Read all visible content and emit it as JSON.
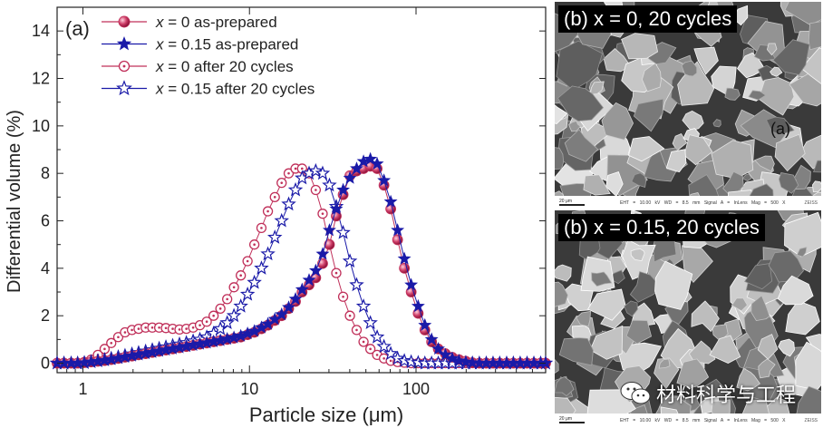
{
  "chart_data": {
    "type": "scatter",
    "panel_label": "(a)",
    "xlabel": "Particle size (μm)",
    "ylabel": "Differential volume (%)",
    "xscale": "log",
    "xlim": [
      0.7,
      600
    ],
    "ylim": [
      -0.4,
      15
    ],
    "xticks": [
      {
        "value": 1,
        "label": "1"
      },
      {
        "value": 10,
        "label": "10"
      },
      {
        "value": 100,
        "label": "100"
      }
    ],
    "yticks": [
      0,
      2,
      4,
      6,
      8,
      10,
      12,
      14
    ],
    "grid": false,
    "legend_position": "top-left",
    "series": [
      {
        "name": "x = 0 as-prepared",
        "name_var": "x",
        "name_rest": " = 0 as-prepared",
        "color": "#c0305a",
        "marker": "half-filled-circle",
        "x": [
          0.7,
          0.77,
          0.85,
          0.93,
          1.02,
          1.12,
          1.23,
          1.35,
          1.48,
          1.63,
          1.79,
          1.97,
          2.16,
          2.38,
          2.61,
          2.87,
          3.15,
          3.46,
          3.8,
          4.18,
          4.59,
          5.04,
          5.54,
          6.09,
          6.69,
          7.35,
          8.07,
          8.87,
          9.74,
          10.7,
          11.8,
          12.9,
          14.2,
          15.6,
          17.2,
          18.9,
          20.7,
          22.8,
          25.0,
          27.5,
          30.2,
          33.2,
          36.5,
          40.1,
          44.0,
          48.4,
          53.2,
          58.4,
          64.2,
          70.5,
          77.5,
          85.1,
          93.5,
          103,
          113,
          124,
          136,
          150,
          165,
          181,
          199,
          218,
          240,
          264,
          290,
          318,
          350,
          384,
          422,
          464,
          510,
          560,
          600
        ],
        "y": [
          0,
          0,
          0,
          0,
          0.02,
          0.05,
          0.08,
          0.11,
          0.15,
          0.2,
          0.25,
          0.3,
          0.35,
          0.4,
          0.45,
          0.5,
          0.55,
          0.6,
          0.65,
          0.7,
          0.75,
          0.8,
          0.85,
          0.9,
          0.95,
          1.0,
          1.05,
          1.1,
          1.2,
          1.3,
          1.45,
          1.6,
          1.8,
          2.0,
          2.3,
          2.6,
          3.0,
          3.3,
          3.6,
          4.2,
          5.0,
          6.2,
          7.1,
          7.9,
          8.1,
          8.2,
          8.3,
          8.2,
          7.5,
          6.5,
          5.2,
          4.0,
          3.0,
          2.1,
          1.4,
          0.9,
          0.6,
          0.4,
          0.25,
          0.15,
          0.08,
          0.02,
          0,
          0,
          0,
          0,
          0,
          0,
          0,
          0,
          0,
          0,
          0
        ]
      },
      {
        "name": "x = 0.15 as-prepared",
        "name_var": "x",
        "name_rest": " = 0.15 as-prepared",
        "color": "#1a1aa8",
        "marker": "filled-star",
        "x": [
          0.7,
          0.77,
          0.85,
          0.93,
          1.02,
          1.12,
          1.23,
          1.35,
          1.48,
          1.63,
          1.79,
          1.97,
          2.16,
          2.38,
          2.61,
          2.87,
          3.15,
          3.46,
          3.8,
          4.18,
          4.59,
          5.04,
          5.54,
          6.09,
          6.69,
          7.35,
          8.07,
          8.87,
          9.74,
          10.7,
          11.8,
          12.9,
          14.2,
          15.6,
          17.2,
          18.9,
          20.7,
          22.8,
          25.0,
          27.5,
          30.2,
          33.2,
          36.5,
          40.1,
          44.0,
          48.4,
          53.2,
          58.4,
          64.2,
          70.5,
          77.5,
          85.1,
          93.5,
          103,
          113,
          124,
          136,
          150,
          165,
          181,
          199,
          218,
          240,
          264,
          290,
          318,
          350,
          384,
          422,
          464,
          510,
          560,
          600
        ],
        "y": [
          0,
          0,
          0,
          0,
          0.02,
          0.05,
          0.08,
          0.12,
          0.16,
          0.21,
          0.26,
          0.31,
          0.36,
          0.41,
          0.46,
          0.51,
          0.56,
          0.61,
          0.66,
          0.71,
          0.76,
          0.81,
          0.86,
          0.91,
          0.96,
          1.02,
          1.08,
          1.15,
          1.25,
          1.35,
          1.5,
          1.65,
          1.85,
          2.05,
          2.35,
          2.7,
          3.1,
          3.5,
          3.9,
          4.6,
          5.6,
          6.5,
          7.3,
          7.8,
          8.2,
          8.5,
          8.6,
          8.4,
          7.7,
          6.8,
          5.6,
          4.4,
          3.3,
          2.4,
          1.6,
          1.0,
          0.6,
          0.35,
          0.2,
          0.1,
          0.05,
          0.02,
          0,
          0,
          0,
          0,
          0,
          0,
          0,
          0,
          0,
          0,
          0
        ]
      },
      {
        "name": "x = 0 after 20 cycles",
        "name_var": "x",
        "name_rest": " = 0 after 20 cycles",
        "color": "#c0305a",
        "marker": "open-dotted-circle",
        "x": [
          0.7,
          0.77,
          0.85,
          0.93,
          1.02,
          1.12,
          1.23,
          1.35,
          1.48,
          1.63,
          1.79,
          1.97,
          2.16,
          2.38,
          2.61,
          2.87,
          3.15,
          3.46,
          3.8,
          4.18,
          4.59,
          5.04,
          5.54,
          6.09,
          6.69,
          7.35,
          8.07,
          8.87,
          9.74,
          10.7,
          11.8,
          12.9,
          14.2,
          15.6,
          17.2,
          18.9,
          20.7,
          22.8,
          25.0,
          27.5,
          30.2,
          33.2,
          36.5,
          40.1,
          44.0,
          48.4,
          53.2,
          58.4,
          64.2,
          70.5,
          77.5,
          85.1,
          93.5,
          103,
          113,
          124,
          136,
          150,
          165,
          181,
          199,
          218,
          240,
          264,
          290,
          318,
          350,
          384,
          422,
          464,
          510,
          560,
          600
        ],
        "y": [
          0,
          0,
          0,
          0,
          0.05,
          0.15,
          0.35,
          0.6,
          0.85,
          1.1,
          1.3,
          1.4,
          1.45,
          1.5,
          1.5,
          1.5,
          1.48,
          1.45,
          1.42,
          1.45,
          1.5,
          1.6,
          1.75,
          2.0,
          2.3,
          2.7,
          3.2,
          3.7,
          4.3,
          5.0,
          5.7,
          6.4,
          7.0,
          7.6,
          8.0,
          8.2,
          8.2,
          8.0,
          7.3,
          6.3,
          5.0,
          3.8,
          2.8,
          2.0,
          1.4,
          0.9,
          0.6,
          0.35,
          0.2,
          0.1,
          0.05,
          0.02,
          0,
          0,
          0,
          0,
          0,
          0,
          0,
          0,
          0,
          0,
          0,
          0,
          0,
          0,
          0,
          0,
          0,
          0,
          0,
          0,
          0
        ]
      },
      {
        "name": "x = 0.15 after 20 cycles",
        "name_var": "x",
        "name_rest": " = 0.15 after 20 cycles",
        "color": "#1a1aa8",
        "marker": "open-star",
        "x": [
          0.7,
          0.77,
          0.85,
          0.93,
          1.02,
          1.12,
          1.23,
          1.35,
          1.48,
          1.63,
          1.79,
          1.97,
          2.16,
          2.38,
          2.61,
          2.87,
          3.15,
          3.46,
          3.8,
          4.18,
          4.59,
          5.04,
          5.54,
          6.09,
          6.69,
          7.35,
          8.07,
          8.87,
          9.74,
          10.7,
          11.8,
          12.9,
          14.2,
          15.6,
          17.2,
          18.9,
          20.7,
          22.8,
          25.0,
          27.5,
          30.2,
          33.2,
          36.5,
          40.1,
          44.0,
          48.4,
          53.2,
          58.4,
          64.2,
          70.5,
          77.5,
          85.1,
          93.5,
          103,
          113,
          124,
          136,
          150,
          165,
          181,
          199,
          218,
          240,
          264,
          290,
          318,
          350,
          384,
          422,
          464,
          510,
          560,
          600
        ],
        "y": [
          0,
          0,
          0,
          0,
          0.02,
          0.06,
          0.1,
          0.15,
          0.2,
          0.26,
          0.32,
          0.38,
          0.44,
          0.5,
          0.56,
          0.62,
          0.68,
          0.74,
          0.8,
          0.86,
          0.93,
          1.0,
          1.1,
          1.25,
          1.45,
          1.7,
          2.0,
          2.4,
          2.9,
          3.4,
          4.0,
          4.6,
          5.3,
          6.0,
          6.7,
          7.3,
          7.8,
          8.0,
          8.1,
          8.0,
          7.5,
          6.6,
          5.5,
          4.3,
          3.3,
          2.4,
          1.7,
          1.1,
          0.7,
          0.4,
          0.2,
          0.1,
          0.05,
          0.02,
          0,
          0,
          0,
          0,
          0,
          0,
          0,
          0,
          0,
          0,
          0,
          0,
          0,
          0,
          0,
          0,
          0,
          0,
          0
        ]
      }
    ]
  },
  "panels": {
    "top": {
      "label": "(b) x = 0, 20 cycles",
      "inset_label": "(a)",
      "scale_label": "20 μm",
      "info": "EHT = 10.00 kV   WD = 8.5 mm   Signal A = InLens   Mag = 500 X"
    },
    "bottom": {
      "label": "(b) x = 0.15, 20 cycles",
      "scale_label": "20 μm",
      "info": "EHT = 10.00 kV   WD = 8.5 mm   Signal A = InLens   Mag = 500 X"
    }
  },
  "watermark": "材料科学与工程"
}
